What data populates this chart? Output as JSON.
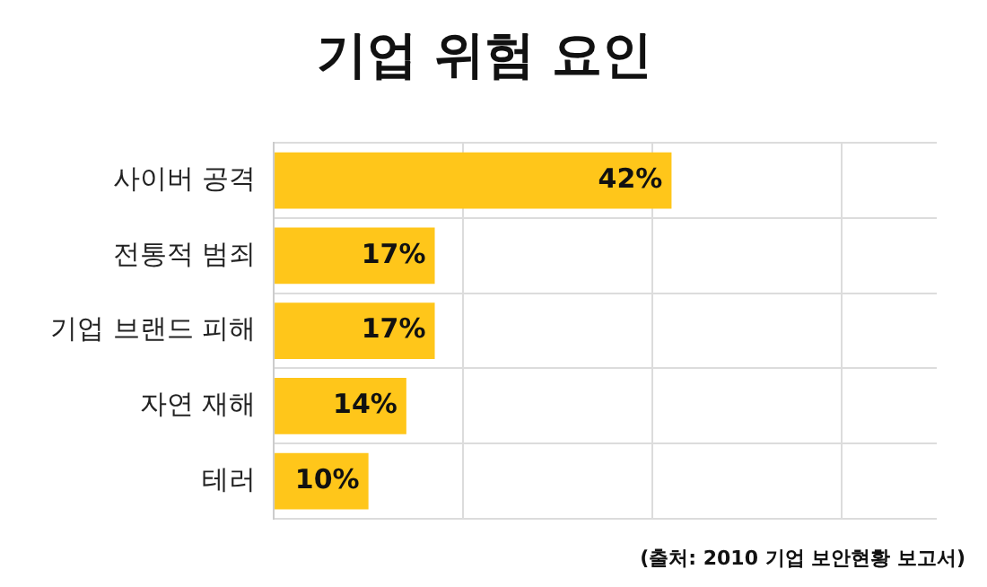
{
  "chart_data": {
    "type": "bar",
    "orientation": "horizontal",
    "title": "기업 위험 요인",
    "categories": [
      "사이버 공격",
      "전통적 범죄",
      "기업 브랜드 피해",
      "자연 재해",
      "테러"
    ],
    "values": [
      42,
      17,
      17,
      14,
      10
    ],
    "value_labels": [
      "42%",
      "17%",
      "17%",
      "14%",
      "10%"
    ],
    "color": "#ffc61a",
    "xlim": [
      0,
      70
    ],
    "xticks": [
      {
        "value": 0,
        "label": null
      },
      {
        "value": 20,
        "label": null
      },
      {
        "value": 40,
        "label": null
      },
      {
        "value": 60,
        "label": null
      }
    ],
    "tick_labels": "y",
    "grid": true,
    "legend": false,
    "annotations": [
      "(출처: 2010 기업 보안현황 보고서)"
    ]
  }
}
